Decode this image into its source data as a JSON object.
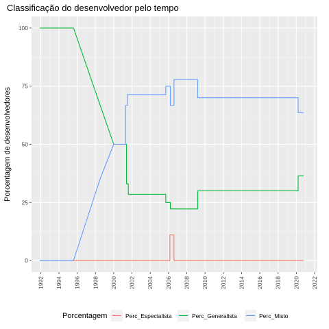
{
  "chart_data": {
    "type": "line",
    "title": "Classificação do desenvolvedor pelo tempo",
    "xlabel": "",
    "ylabel": "Porcentagem de desenvolvedores",
    "xlim": [
      1991.0,
      2022.3
    ],
    "ylim": [
      -5,
      105
    ],
    "x_ticks": [
      "1992",
      "1994",
      "1996",
      "1998",
      "2000",
      "2002",
      "2004",
      "2006",
      "2008",
      "2010",
      "2012",
      "2014",
      "2016",
      "2018",
      "2020",
      "2022"
    ],
    "y_ticks": [
      "0",
      "25",
      "50",
      "75",
      "100"
    ],
    "legend": {
      "title": "Porcentagem",
      "position": "bottom"
    },
    "colors": {
      "Perc_Especialista": "#F8766D",
      "Perc_Generalista": "#00BA38",
      "Perc_Misto": "#619CFF"
    },
    "series": [
      {
        "name": "Perc_Especialista",
        "x": [
          1991.9,
          2006.15,
          2006.15,
          2006.6,
          2006.6,
          2020.8
        ],
        "y": [
          0,
          0,
          11,
          11,
          0,
          0
        ]
      },
      {
        "name": "Perc_Generalista",
        "x": [
          1991.9,
          1995.6,
          1998.5,
          2000.0,
          2001.4,
          2001.4,
          2001.6,
          2001.6,
          2005.7,
          2005.7,
          2006.2,
          2006.2,
          2009.2,
          2009.2,
          2020.2,
          2020.2,
          2020.8
        ],
        "y": [
          100,
          100,
          67,
          50,
          50,
          33,
          33,
          28.5,
          28.5,
          25,
          25,
          22.2,
          22.2,
          30,
          30,
          36.4,
          36.4
        ],
        "note_x": "time axis"
      },
      {
        "name": "Perc_Misto",
        "x": [
          1991.9,
          1995.6,
          1998.5,
          2000.0,
          2001.3,
          2001.3,
          2001.5,
          2001.5,
          2005.7,
          2005.7,
          2006.2,
          2006.2,
          2006.6,
          2006.6,
          2009.2,
          2009.2,
          2020.2,
          2020.2,
          2020.8
        ],
        "y": [
          0,
          0,
          35,
          50,
          50,
          66.7,
          66.7,
          71.4,
          71.4,
          75,
          75,
          66.7,
          66.7,
          77.8,
          77.8,
          70,
          70,
          63.6,
          63.6
        ]
      }
    ]
  }
}
